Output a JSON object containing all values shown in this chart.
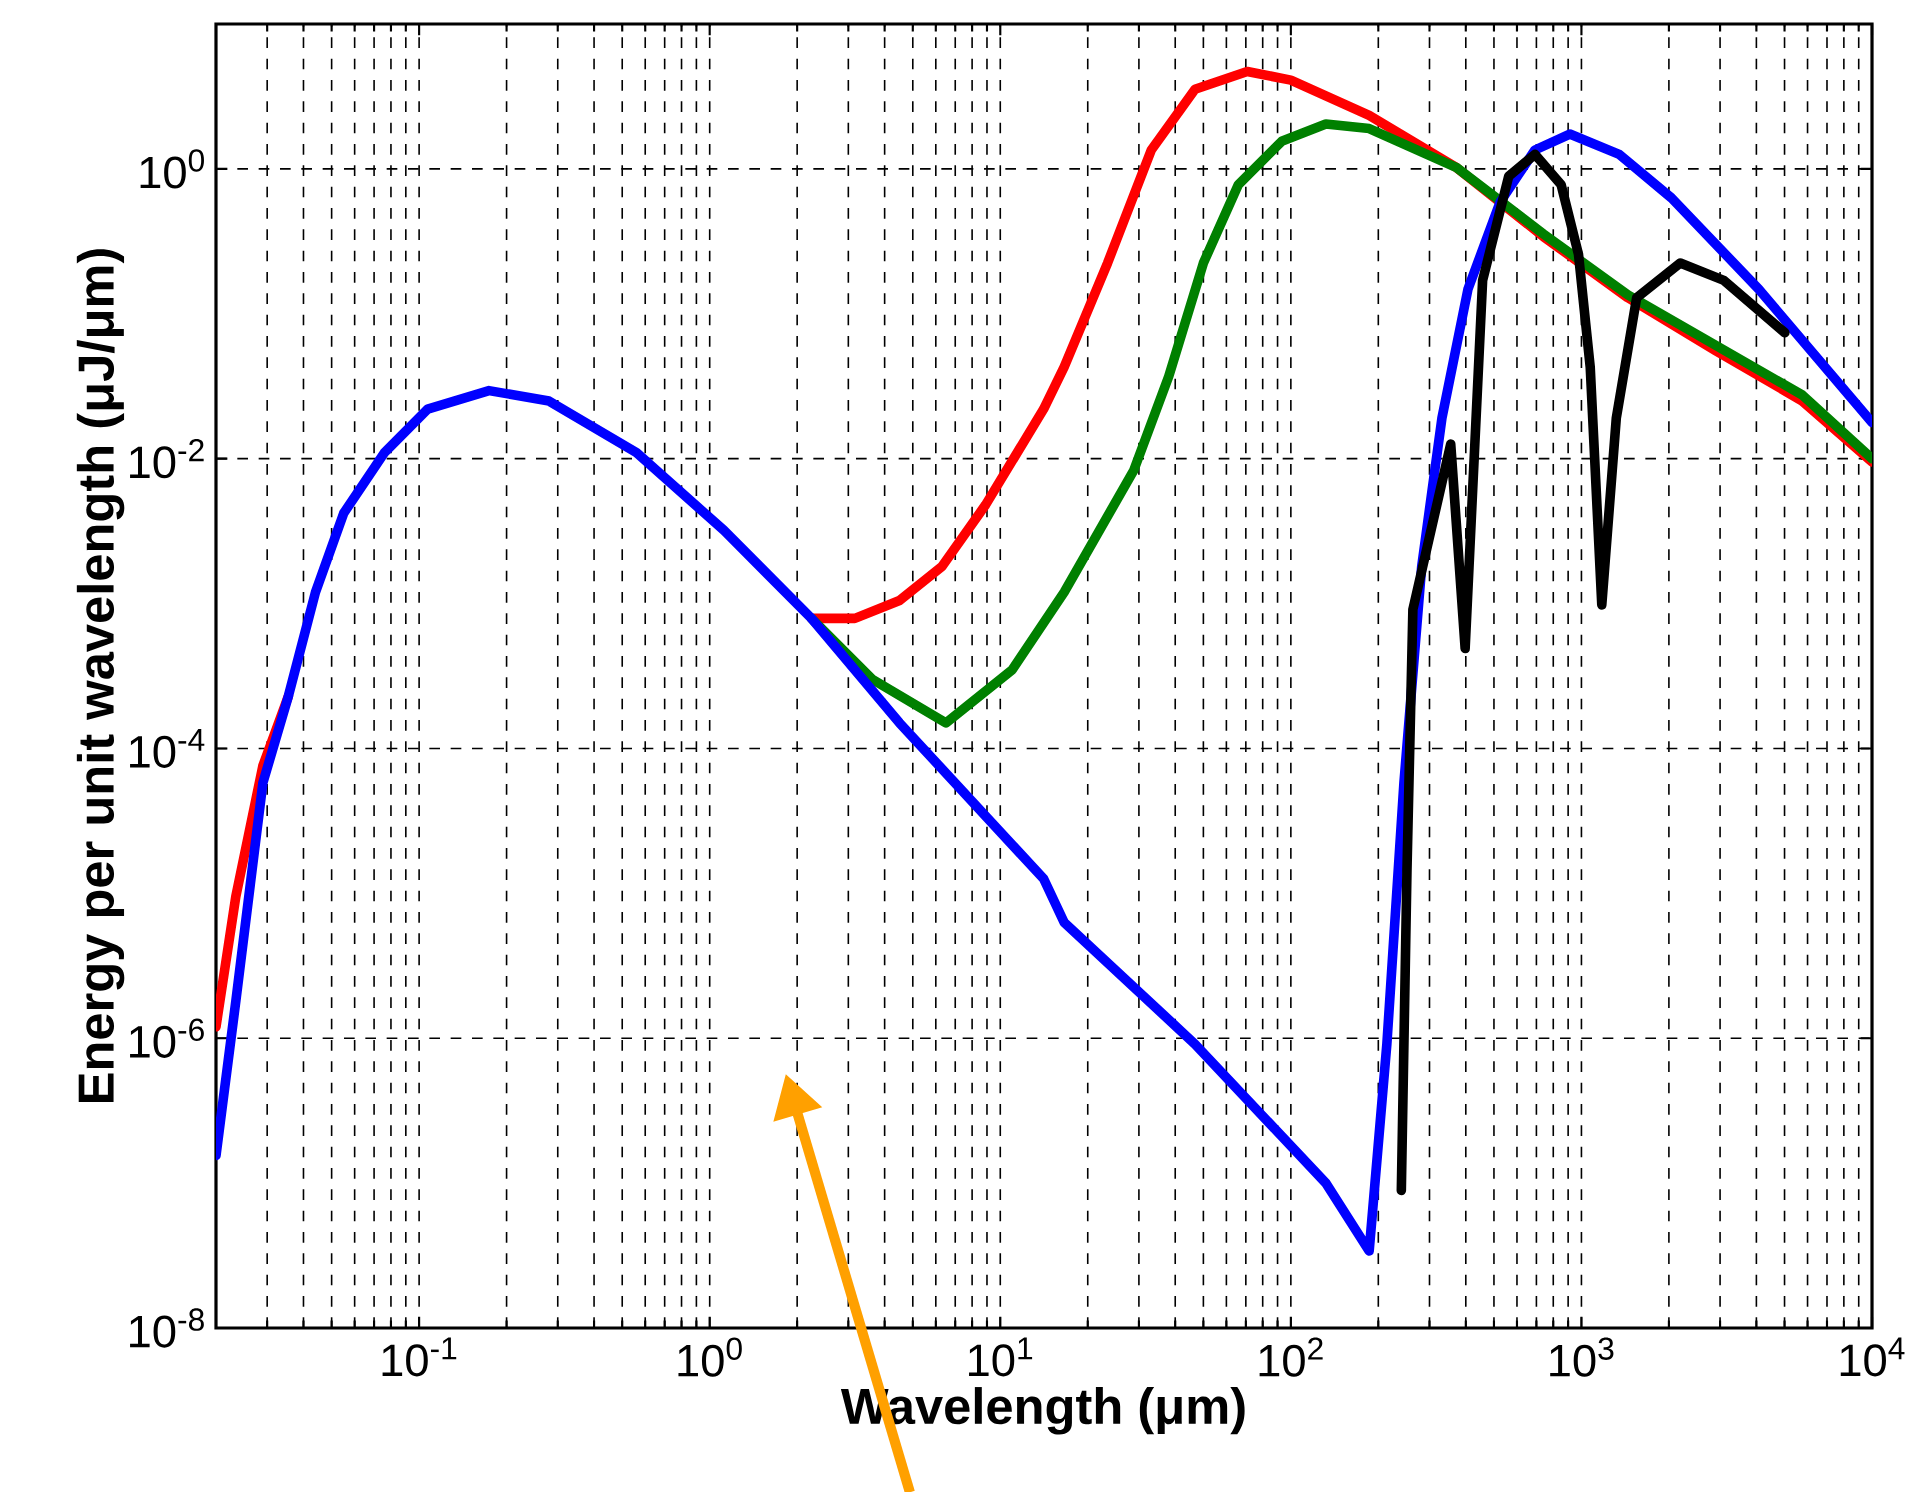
{
  "chart_data": {
    "type": "line",
    "xlabel": "Wavelength (μm)",
    "ylabel": "Energy per unit wavelength (μJ/μm)",
    "log": "xy",
    "grid": true,
    "marker": "none",
    "line_style": "solid",
    "xlim": [
      0.02,
      10000
    ],
    "ylim": [
      1e-08,
      10
    ],
    "xticks": [
      {
        "value": 0.1,
        "label": "10$^{-1}$"
      },
      {
        "value": 1,
        "label": "10$^{0}$"
      },
      {
        "value": 10,
        "label": "10$^{1}$"
      },
      {
        "value": 100,
        "label": "10$^{2}$"
      },
      {
        "value": 1000,
        "label": "10$^{3}$"
      },
      {
        "value": 10000,
        "label": "10$^{4}$"
      }
    ],
    "yticks": [
      {
        "value": 1e-08,
        "label": "10$^{-8}$"
      },
      {
        "value": 1e-06,
        "label": "10$^{-6}$"
      },
      {
        "value": 0.0001,
        "label": "10$^{-4}$"
      },
      {
        "value": 0.01,
        "label": "10$^{-2}$"
      },
      {
        "value": 1,
        "label": "10$^{0}$"
      }
    ],
    "series": [
      {
        "color": "#ff0000",
        "x": [
          0.02,
          0.0234,
          0.029,
          0.0355,
          0.044,
          0.055,
          0.076,
          0.107,
          0.174,
          0.28,
          0.56,
          1.12,
          2.24,
          3.16,
          4.5,
          6.3,
          8.9,
          14.1,
          16.6,
          23.4,
          33.1,
          46.8,
          70.8,
          100,
          186,
          372,
          741,
          1445,
          2884,
          5754,
          10000
        ],
        "values": [
          1.2e-06,
          9.5e-06,
          7.6e-05,
          0.00023,
          null,
          null,
          null,
          null,
          null,
          null,
          null,
          null,
          0.00079,
          0.00079,
          0.00105,
          0.0018,
          0.0048,
          0.022,
          0.043,
          0.224,
          1.35,
          3.55,
          4.7,
          4.1,
          2.34,
          1.02,
          0.34,
          0.129,
          0.056,
          0.025,
          0.0095
        ]
      },
      {
        "color": "#008000",
        "x": [
          2.24,
          3.63,
          6.5,
          11,
          16.6,
          28.8,
          38,
          50,
          66,
          93,
          132,
          186,
          372,
          741,
          1445,
          5754,
          10000
        ],
        "values": [
          0.00079,
          0.0003,
          0.00015,
          0.00035,
          0.0012,
          0.0083,
          0.037,
          0.224,
          0.78,
          1.55,
          2.04,
          1.9,
          1.02,
          0.355,
          0.135,
          0.0275,
          0.01
        ]
      },
      {
        "color": "#0000ff",
        "x": [
          0.02,
          0.0234,
          0.029,
          0.0355,
          0.044,
          0.055,
          0.076,
          0.107,
          0.174,
          0.28,
          0.56,
          1.12,
          2.24,
          4.5,
          14.1,
          16.6,
          46.8,
          132,
          186,
          214,
          245,
          282,
          331,
          407,
          525,
          692,
          912,
          1349,
          2042,
          4074,
          10000
        ],
        "values": [
          1.55e-07,
          1.8e-06,
          5.8e-05,
          0.00023,
          0.0012,
          0.0042,
          0.011,
          0.022,
          0.0295,
          0.025,
          0.011,
          0.0032,
          0.00079,
          0.00015,
          1.26e-05,
          6.3e-06,
          9.1e-07,
          1e-07,
          3.4e-08,
          9.1e-07,
          5.8e-05,
          0.0018,
          0.019,
          0.148,
          0.59,
          1.35,
          1.74,
          1.26,
          0.63,
          0.148,
          0.0178
        ]
      },
      {
        "color": "#000000",
        "x": [
          240,
          251,
          263,
          355,
          398,
          457,
          562,
          692,
          851,
          977,
          1072,
          1175,
          1318,
          1549,
          2188,
          3090,
          5012
        ],
        "values": [
          8.9e-08,
          1.45e-05,
          0.00091,
          0.0126,
          0.00049,
          0.17,
          0.89,
          1.26,
          0.78,
          0.257,
          0.043,
          0.00098,
          0.019,
          0.129,
          0.224,
          0.17,
          0.074
        ]
      }
    ]
  }
}
